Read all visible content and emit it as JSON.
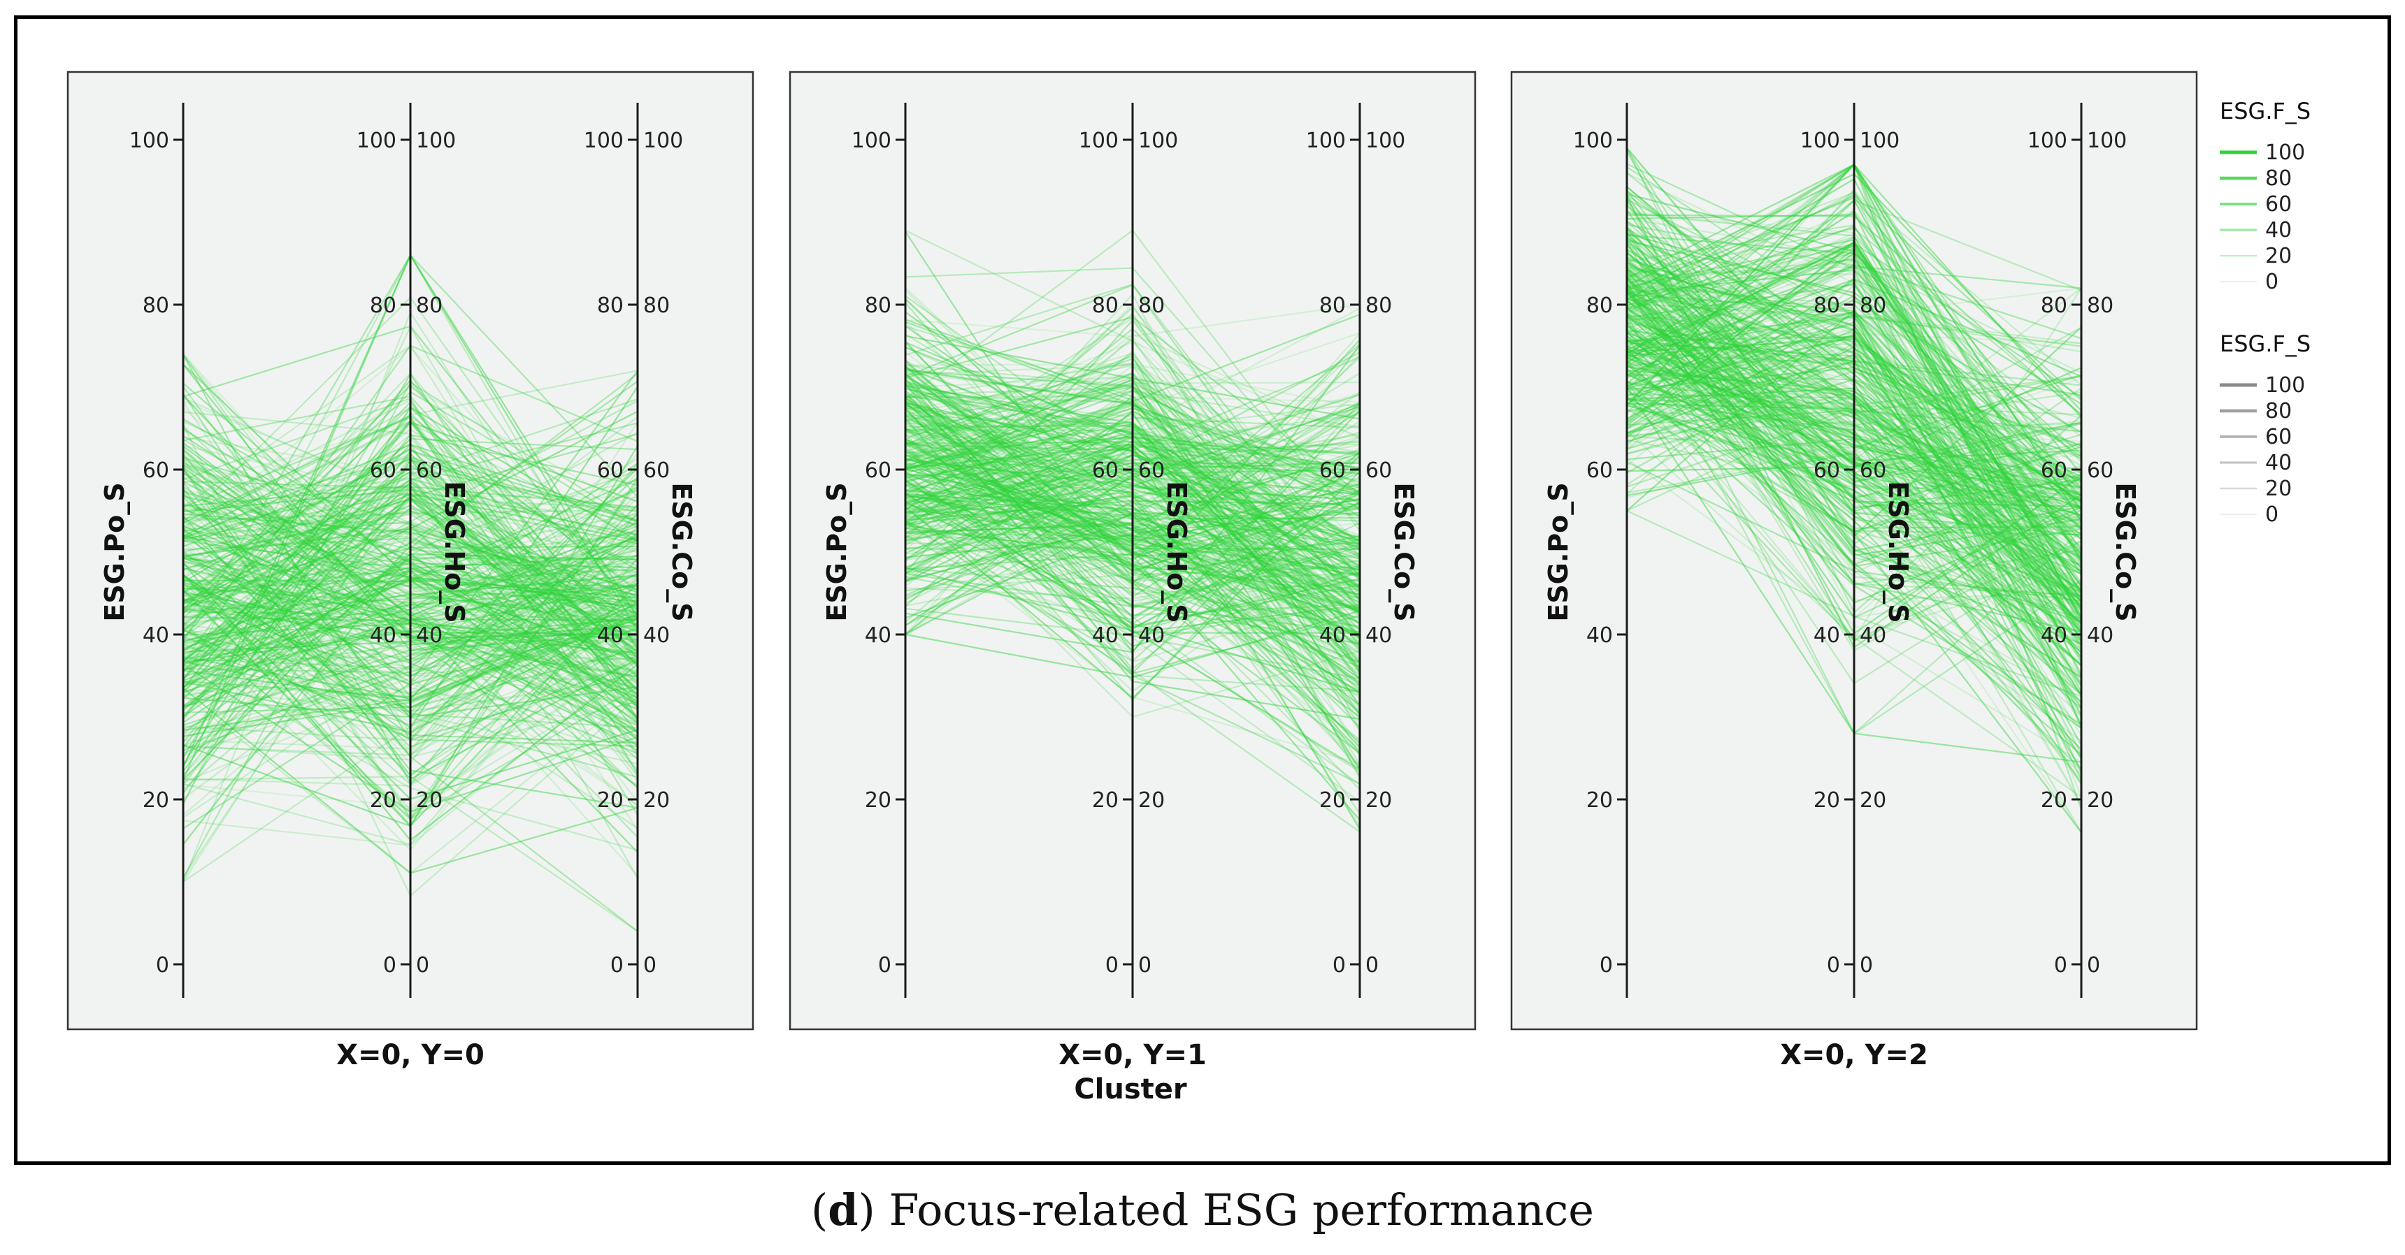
{
  "chart_data": {
    "type": "parallel_coordinates",
    "axes": [
      "ESG.Po_S",
      "ESG.Ho_S",
      "ESG.Co_S"
    ],
    "axis_range": [
      0,
      100
    ],
    "tick_labels": [
      "0",
      "20",
      "40",
      "60",
      "80",
      "100"
    ],
    "x_axis_title": "Cluster",
    "color_variable": "ESG.F_S",
    "panels": [
      {
        "label": "X=0, Y=0",
        "series": [
          {
            "name": "Po_S",
            "mean": 45,
            "sd": 14,
            "min": 10,
            "max": 74
          },
          {
            "name": "Ho_S",
            "mean": 46,
            "sd": 15,
            "min": 8,
            "max": 86
          },
          {
            "name": "Co_S",
            "mean": 42,
            "sd": 11,
            "min": 4,
            "max": 72
          }
        ],
        "colors_ref": "F_S"
      },
      {
        "label": "X=0, Y=1",
        "series": [
          {
            "name": "Po_S",
            "mean": 61,
            "sd": 9,
            "min": 40,
            "max": 90
          },
          {
            "name": "Ho_S",
            "mean": 58,
            "sd": 11,
            "min": 30,
            "max": 89
          },
          {
            "name": "Co_S",
            "mean": 47,
            "sd": 13,
            "min": 10,
            "max": 80
          }
        ]
      },
      {
        "label": "X=0, Y=2",
        "series": [
          {
            "name": "Po_S",
            "mean": 78,
            "sd": 9,
            "min": 55,
            "max": 99
          },
          {
            "name": "Ho_S",
            "mean": 68,
            "sd": 14,
            "min": 28,
            "max": 97
          },
          {
            "name": "Co_S",
            "mean": 50,
            "sd": 14,
            "min": 16,
            "max": 82
          }
        ]
      }
    ],
    "legend_green": {
      "title": "ESG.F_S",
      "entries": [
        "100",
        "80",
        "60",
        "40",
        "20",
        "0"
      ]
    },
    "legend_gray": {
      "title": "ESG.F_S",
      "entries": [
        "100",
        "80",
        "60",
        "40",
        "20",
        "0"
      ]
    },
    "colors": {
      "line": "#2fd43a",
      "panel_bg": "#f1f3f2",
      "axis": "#1a1a1a",
      "legend_gray": "#8a8a8a"
    }
  },
  "caption": {
    "letter": "d",
    "text": ") Focus-related ESG performance",
    "open_paren": "("
  }
}
